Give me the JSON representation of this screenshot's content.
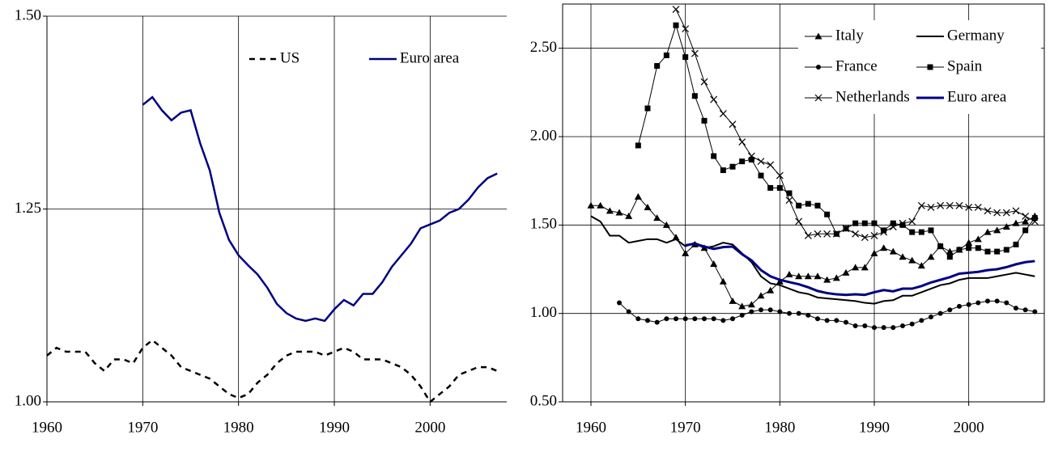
{
  "chart_data": [
    {
      "type": "line",
      "x": [
        1960,
        1961,
        1962,
        1963,
        1964,
        1965,
        1966,
        1967,
        1968,
        1969,
        1970,
        1971,
        1972,
        1973,
        1974,
        1975,
        1976,
        1977,
        1978,
        1979,
        1980,
        1981,
        1982,
        1983,
        1984,
        1985,
        1986,
        1987,
        1988,
        1989,
        1990,
        1991,
        1992,
        1993,
        1994,
        1995,
        1996,
        1997,
        1998,
        1999,
        2000,
        2001,
        2002,
        2003,
        2004,
        2005,
        2006,
        2007
      ],
      "xlim": [
        1960,
        2008
      ],
      "xticks": [
        1960,
        1970,
        1980,
        1990,
        2000
      ],
      "ylim": [
        1,
        1.5
      ],
      "yticks": [
        {
          "value": 1,
          "label": "1.00"
        },
        {
          "value": 1.25,
          "label": "1.25"
        },
        {
          "value": 1.5,
          "label": "1.50"
        }
      ],
      "grid": true,
      "frame": false,
      "legend": "top",
      "legend_columns": 2,
      "series": [
        {
          "name": "US",
          "color": "#000000",
          "dash": true,
          "line_width": 2.5,
          "marker": "none",
          "values": [
            1.06,
            1.07,
            1.065,
            1.065,
            1.065,
            1.05,
            1.04,
            1.055,
            1.055,
            1.05,
            1.07,
            1.08,
            1.07,
            1.06,
            1.045,
            1.04,
            1.035,
            1.03,
            1.02,
            1.01,
            1.005,
            1.01,
            1.025,
            1.035,
            1.05,
            1.06,
            1.065,
            1.065,
            1.065,
            1.06,
            1.065,
            1.07,
            1.065,
            1.055,
            1.055,
            1.055,
            1.05,
            1.045,
            1.035,
            1.02,
            1.0,
            1.01,
            1.02,
            1.035,
            1.04,
            1.045,
            1.045,
            1.04
          ]
        },
        {
          "name": "Euro area",
          "color": "#000080",
          "dash": false,
          "line_width": 2.5,
          "marker": "none",
          "values": [
            null,
            null,
            null,
            null,
            null,
            null,
            null,
            null,
            null,
            null,
            1.385,
            1.395,
            1.378,
            1.365,
            1.375,
            1.378,
            1.335,
            1.3,
            1.245,
            1.21,
            1.19,
            1.177,
            1.165,
            1.148,
            1.127,
            1.115,
            1.108,
            1.105,
            1.108,
            1.105,
            1.12,
            1.132,
            1.125,
            1.14,
            1.14,
            1.155,
            1.175,
            1.19,
            1.205,
            1.225,
            1.23,
            1.235,
            1.245,
            1.25,
            1.262,
            1.278,
            1.29,
            1.296
          ]
        }
      ]
    },
    {
      "type": "line",
      "x": [
        1960,
        1961,
        1962,
        1963,
        1964,
        1965,
        1966,
        1967,
        1968,
        1969,
        1970,
        1971,
        1972,
        1973,
        1974,
        1975,
        1976,
        1977,
        1978,
        1979,
        1980,
        1981,
        1982,
        1983,
        1984,
        1985,
        1986,
        1987,
        1988,
        1989,
        1990,
        1991,
        1992,
        1993,
        1994,
        1995,
        1996,
        1997,
        1998,
        1999,
        2000,
        2001,
        2002,
        2003,
        2004,
        2005,
        2006,
        2007
      ],
      "xlim": [
        1957,
        2008
      ],
      "xticks": [
        1960,
        1970,
        1980,
        1990,
        2000
      ],
      "ylim": [
        0.5,
        2.75
      ],
      "yticks": [
        {
          "value": 0.5,
          "label": "0.50"
        },
        {
          "value": 1,
          "label": "1.00"
        },
        {
          "value": 1.5,
          "label": "1.50"
        },
        {
          "value": 2,
          "label": "2.00"
        },
        {
          "value": 2.5,
          "label": "2.50"
        }
      ],
      "grid": true,
      "frame": true,
      "legend": "top-right",
      "legend_columns": 2,
      "series": [
        {
          "name": "Italy",
          "color": "#000000",
          "dash": false,
          "line_width": 1,
          "marker": "triangle",
          "values": [
            1.61,
            1.61,
            1.58,
            1.57,
            1.55,
            1.66,
            1.6,
            1.54,
            1.5,
            1.43,
            1.34,
            1.39,
            1.37,
            1.28,
            1.18,
            1.07,
            1.04,
            1.05,
            1.1,
            1.13,
            1.18,
            1.22,
            1.21,
            1.21,
            1.21,
            1.19,
            1.2,
            1.23,
            1.26,
            1.26,
            1.34,
            1.37,
            1.35,
            1.32,
            1.3,
            1.27,
            1.32,
            1.38,
            1.35,
            1.36,
            1.4,
            1.42,
            1.46,
            1.47,
            1.49,
            1.51,
            1.52,
            1.55
          ]
        },
        {
          "name": "Germany",
          "color": "#000000",
          "dash": false,
          "line_width": 2,
          "marker": "none",
          "values": [
            1.55,
            1.52,
            1.44,
            1.44,
            1.4,
            1.41,
            1.42,
            1.42,
            1.4,
            1.42,
            1.38,
            1.4,
            1.37,
            1.38,
            1.4,
            1.39,
            1.34,
            1.29,
            1.21,
            1.17,
            1.16,
            1.14,
            1.12,
            1.11,
            1.09,
            1.085,
            1.08,
            1.075,
            1.07,
            1.06,
            1.055,
            1.07,
            1.075,
            1.1,
            1.1,
            1.12,
            1.14,
            1.16,
            1.17,
            1.19,
            1.2,
            1.2,
            1.2,
            1.21,
            1.22,
            1.23,
            1.22,
            1.21
          ]
        },
        {
          "name": "France",
          "color": "#000000",
          "dash": false,
          "line_width": 1,
          "marker": "circle",
          "values": [
            null,
            null,
            null,
            1.06,
            1.01,
            0.97,
            0.96,
            0.95,
            0.97,
            0.97,
            0.97,
            0.97,
            0.97,
            0.97,
            0.96,
            0.97,
            0.99,
            1.01,
            1.02,
            1.02,
            1.01,
            1.0,
            1.0,
            0.99,
            0.97,
            0.96,
            0.96,
            0.95,
            0.93,
            0.93,
            0.92,
            0.92,
            0.92,
            0.93,
            0.94,
            0.96,
            0.98,
            1.0,
            1.02,
            1.04,
            1.05,
            1.06,
            1.07,
            1.07,
            1.06,
            1.03,
            1.02,
            1.01
          ]
        },
        {
          "name": "Spain",
          "color": "#000000",
          "dash": false,
          "line_width": 1,
          "marker": "square",
          "values": [
            null,
            null,
            null,
            null,
            null,
            1.95,
            2.16,
            2.4,
            2.46,
            2.63,
            2.45,
            2.23,
            2.09,
            1.89,
            1.81,
            1.83,
            1.86,
            1.87,
            1.78,
            1.71,
            1.71,
            1.68,
            1.61,
            1.62,
            1.61,
            1.56,
            1.45,
            1.48,
            1.51,
            1.51,
            1.51,
            1.47,
            1.51,
            1.5,
            1.46,
            1.46,
            1.47,
            1.38,
            1.32,
            1.36,
            1.37,
            1.37,
            1.35,
            1.35,
            1.36,
            1.39,
            1.47,
            1.54
          ]
        },
        {
          "name": "Netherlands",
          "color": "#000000",
          "dash": false,
          "line_width": 1,
          "marker": "cross",
          "values": [
            null,
            null,
            null,
            null,
            null,
            null,
            null,
            null,
            null,
            2.72,
            2.61,
            2.47,
            2.31,
            2.21,
            2.13,
            2.07,
            1.97,
            1.89,
            1.86,
            1.84,
            1.78,
            1.64,
            1.52,
            1.44,
            1.45,
            1.45,
            1.45,
            1.48,
            1.45,
            1.43,
            1.44,
            1.46,
            1.49,
            1.51,
            1.52,
            1.61,
            1.6,
            1.61,
            1.61,
            1.61,
            1.6,
            1.6,
            1.58,
            1.57,
            1.57,
            1.58,
            1.55,
            1.52
          ]
        },
        {
          "name": "Euro area",
          "color": "#000080",
          "dash": false,
          "line_width": 3,
          "marker": "none",
          "values": [
            null,
            null,
            null,
            null,
            null,
            null,
            null,
            null,
            null,
            null,
            1.385,
            1.395,
            1.378,
            1.365,
            1.375,
            1.378,
            1.335,
            1.3,
            1.245,
            1.21,
            1.19,
            1.177,
            1.165,
            1.148,
            1.127,
            1.115,
            1.108,
            1.105,
            1.108,
            1.105,
            1.12,
            1.132,
            1.125,
            1.14,
            1.14,
            1.155,
            1.175,
            1.19,
            1.205,
            1.225,
            1.23,
            1.235,
            1.245,
            1.25,
            1.262,
            1.278,
            1.29,
            1.296
          ]
        }
      ]
    }
  ]
}
